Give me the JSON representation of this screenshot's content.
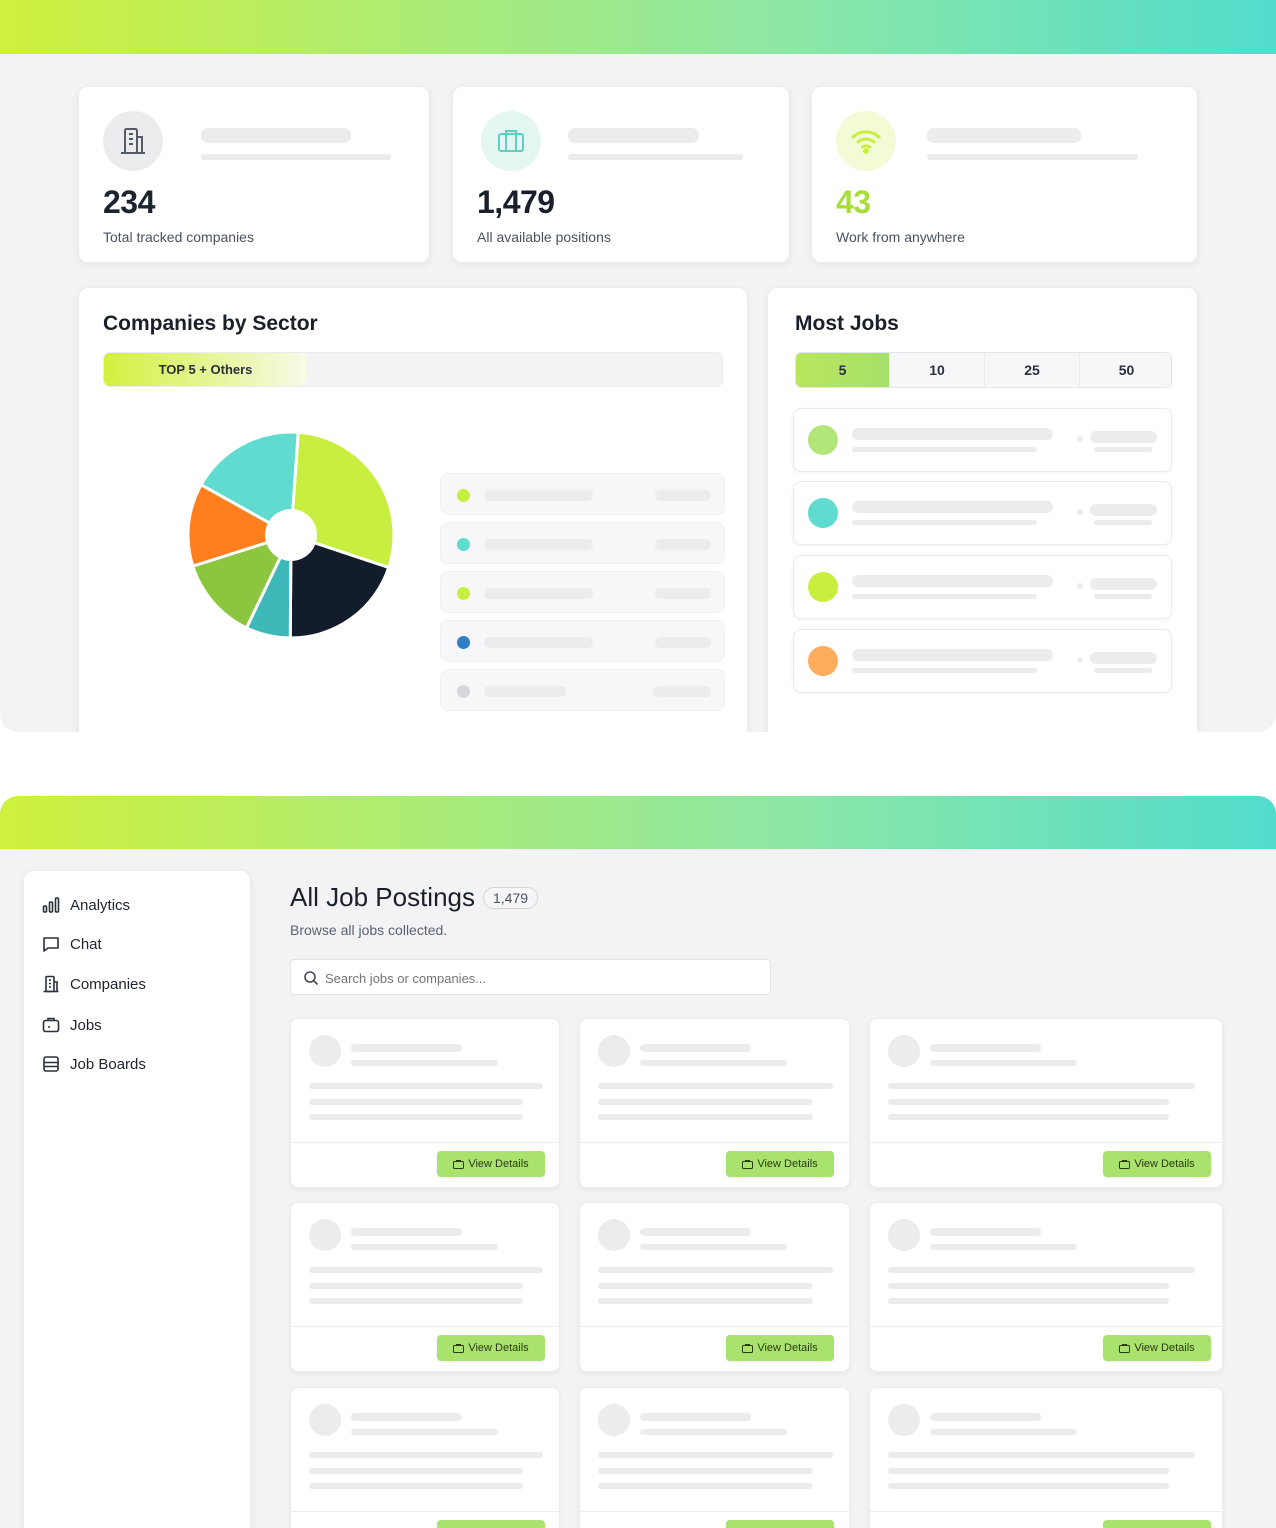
{
  "colors": {
    "lime": "#c8ef3f",
    "green": "#8bc63e",
    "teal": "#5fdbcf",
    "dark_teal": "#3eb8b8",
    "navy": "#131c2b",
    "orange": "#ff7f1e",
    "blue": "#2f7fc6",
    "gray": "#d7d7db"
  },
  "stats": [
    {
      "icon": "building-icon",
      "value": "234",
      "label": "Total tracked companies",
      "value_color": "#1a1f2a"
    },
    {
      "icon": "briefcase-icon",
      "value": "1,479",
      "label": "All available positions",
      "value_color": "#1a1f2a"
    },
    {
      "icon": "wifi-icon",
      "value": "43",
      "label": "Work from anywhere",
      "value_color": "#a9dd3c"
    }
  ],
  "sector": {
    "title": "Companies by Sector",
    "tab_label": "TOP 5 + Others",
    "legend_dot_colors": [
      "#c8ef3f",
      "#5fdbcf",
      "#c8ef3f",
      "#2f7fc6",
      "#d7d7db"
    ]
  },
  "chart_data": {
    "type": "pie",
    "title": "Companies by Sector",
    "slices": [
      {
        "value": 29,
        "color": "#c8ef3f"
      },
      {
        "value": 20,
        "color": "#131c2b"
      },
      {
        "value": 7,
        "color": "#3eb8b8"
      },
      {
        "value": 13,
        "color": "#8bc63e"
      },
      {
        "value": 13,
        "color": "#ff7f1e"
      },
      {
        "value": 18,
        "color": "#5fdbcf"
      }
    ]
  },
  "most_jobs": {
    "title": "Most Jobs",
    "tabs": [
      "5",
      "10",
      "25",
      "50"
    ],
    "active_tab": "5",
    "avatar_colors": [
      "#b2e678",
      "#5fdbcf",
      "#c8ef3f",
      "#ffad5c"
    ]
  },
  "sidebar": {
    "items": [
      {
        "icon": "analytics-icon",
        "label": "Analytics"
      },
      {
        "icon": "chat-icon",
        "label": "Chat"
      },
      {
        "icon": "companies-icon",
        "label": "Companies"
      },
      {
        "icon": "jobs-icon",
        "label": "Jobs"
      },
      {
        "icon": "job-boards-icon",
        "label": "Job Boards"
      }
    ]
  },
  "postings": {
    "title": "All Job Postings",
    "count": "1,479",
    "subtitle": "Browse all jobs collected.",
    "search_placeholder": "Search jobs or companies...",
    "view_label": "View Details"
  }
}
